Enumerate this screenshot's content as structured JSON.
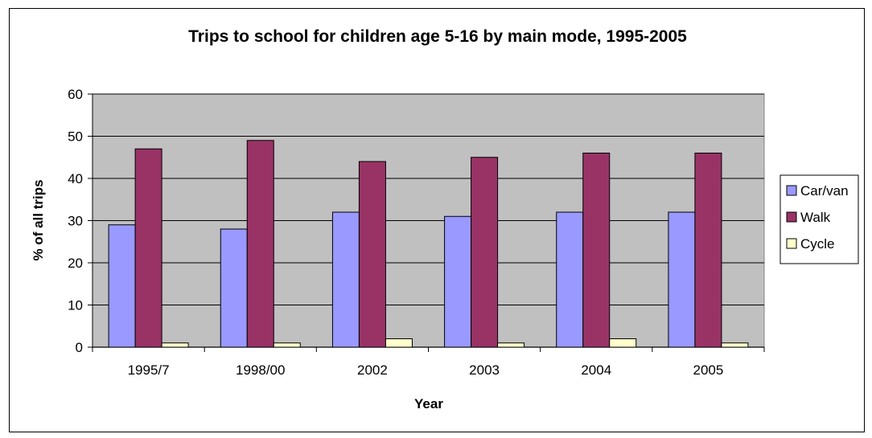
{
  "chart_data": {
    "type": "bar",
    "title": "Trips to school for children age 5-16 by main mode, 1995-2005",
    "xlabel": "Year",
    "ylabel": "% of all trips",
    "ylim": [
      0,
      60
    ],
    "yticks": [
      0,
      10,
      20,
      30,
      40,
      50,
      60
    ],
    "grid": true,
    "legend_position": "right",
    "categories": [
      "1995/7",
      "1998/00",
      "2002",
      "2003",
      "2004",
      "2005"
    ],
    "series": [
      {
        "name": "Car/van",
        "color": "#9999ff",
        "values": [
          29,
          28,
          32,
          31,
          32,
          32
        ]
      },
      {
        "name": "Walk",
        "color": "#993366",
        "values": [
          47,
          49,
          44,
          45,
          46,
          46
        ]
      },
      {
        "name": "Cycle",
        "color": "#ffffcc",
        "values": [
          1,
          1,
          2,
          1,
          2,
          1
        ]
      }
    ],
    "plot_background": "#c0c0c0"
  }
}
